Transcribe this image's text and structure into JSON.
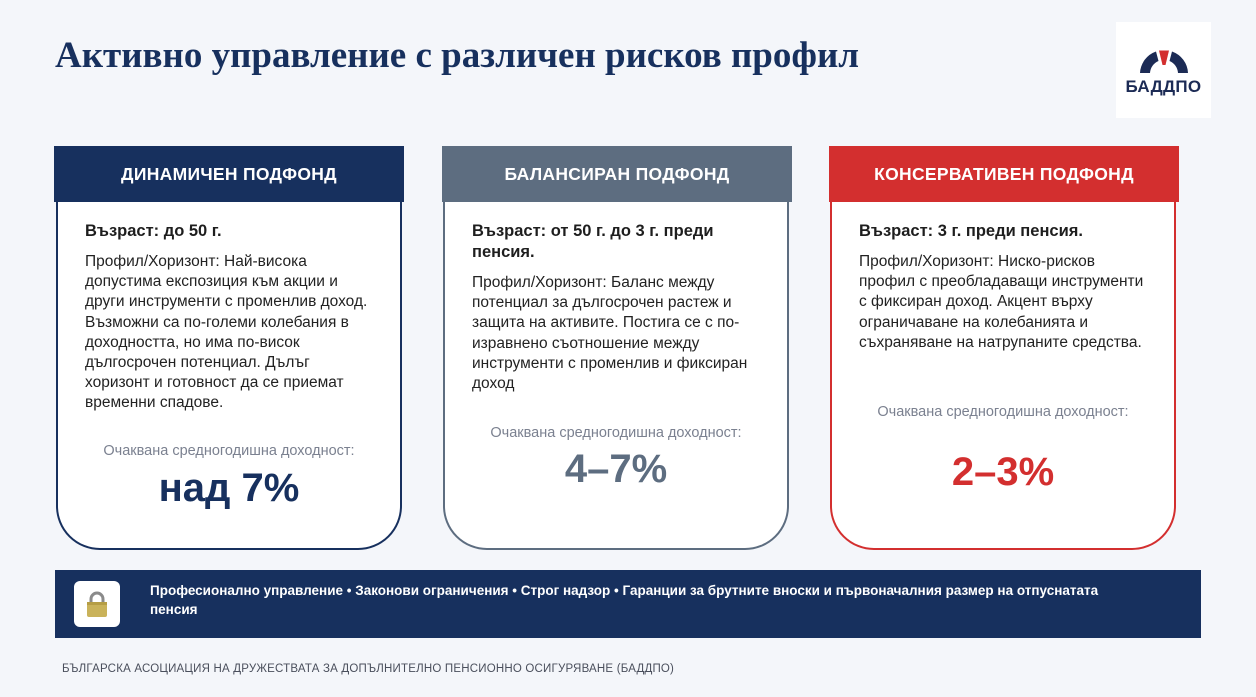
{
  "slide": {
    "title": "Активно управление  с различен рисков профил"
  },
  "logo": {
    "text": "БАДДПО",
    "accent_color": "#d32f2f",
    "main_color": "#1c2b55"
  },
  "cards": [
    {
      "header": "ДИНАМИЧЕН ПОДФОНД",
      "age": "Възраст: до 50 г.",
      "description": "Профил/Хоризонт: Най-висока допустима експозиция към акции и други инструменти с променлив доход. Възможни са по-големи колебания в доходността, но има по-висок дългосрочен потенциал. Дълъг хоризонт и готовност да се приемат временни спадове.",
      "return_label": "Очаквана средногодишна доходност:",
      "return_value": "над 7%",
      "color": "#17305e"
    },
    {
      "header": "БАЛАНСИРАН ПОДФОНД",
      "age": "Възраст: от 50 г. до 3 г. преди пенсия.",
      "description": "Профил/Хоризонт: Баланс между потенциал за дългосрочен растеж и защита на активите. Постига се с по-изравнено съотношение между инструменти с променлив и фиксиран доход",
      "return_label": "Очаквана средногодишна доходност:",
      "return_value": "4–7%",
      "color": "#5d6d80"
    },
    {
      "header": "КОНСЕРВАТИВЕН ПОДФОНД",
      "age": "Възраст: 3 г. преди пенсия.",
      "description": "Профил/Хоризонт: Нискo-рисков профил с преобладаващи инструменти с фиксиран доход. Акцент върху ограничаване на колебанията и съхраняване на натрупаните средства.",
      "return_label": "Очаквана средногодишна доходност:",
      "return_value": "2–3%",
      "color": "#d32f2f"
    }
  ],
  "bottom_bar": {
    "icon": "lock-icon",
    "text": "Професионално управление • Законови ограничения • Строг надзор • Гаранции за брутните вноски и първоначалния размер на отпуснатата пенсия"
  },
  "footer": {
    "text": "БЪЛГАРСКА АСОЦИАЦИЯ НА ДРУЖЕСТВАТА ЗА ДОПЪЛНИТЕЛНО ПЕНСИОННО ОСИГУРЯВАНЕ (БАДДПО)"
  }
}
